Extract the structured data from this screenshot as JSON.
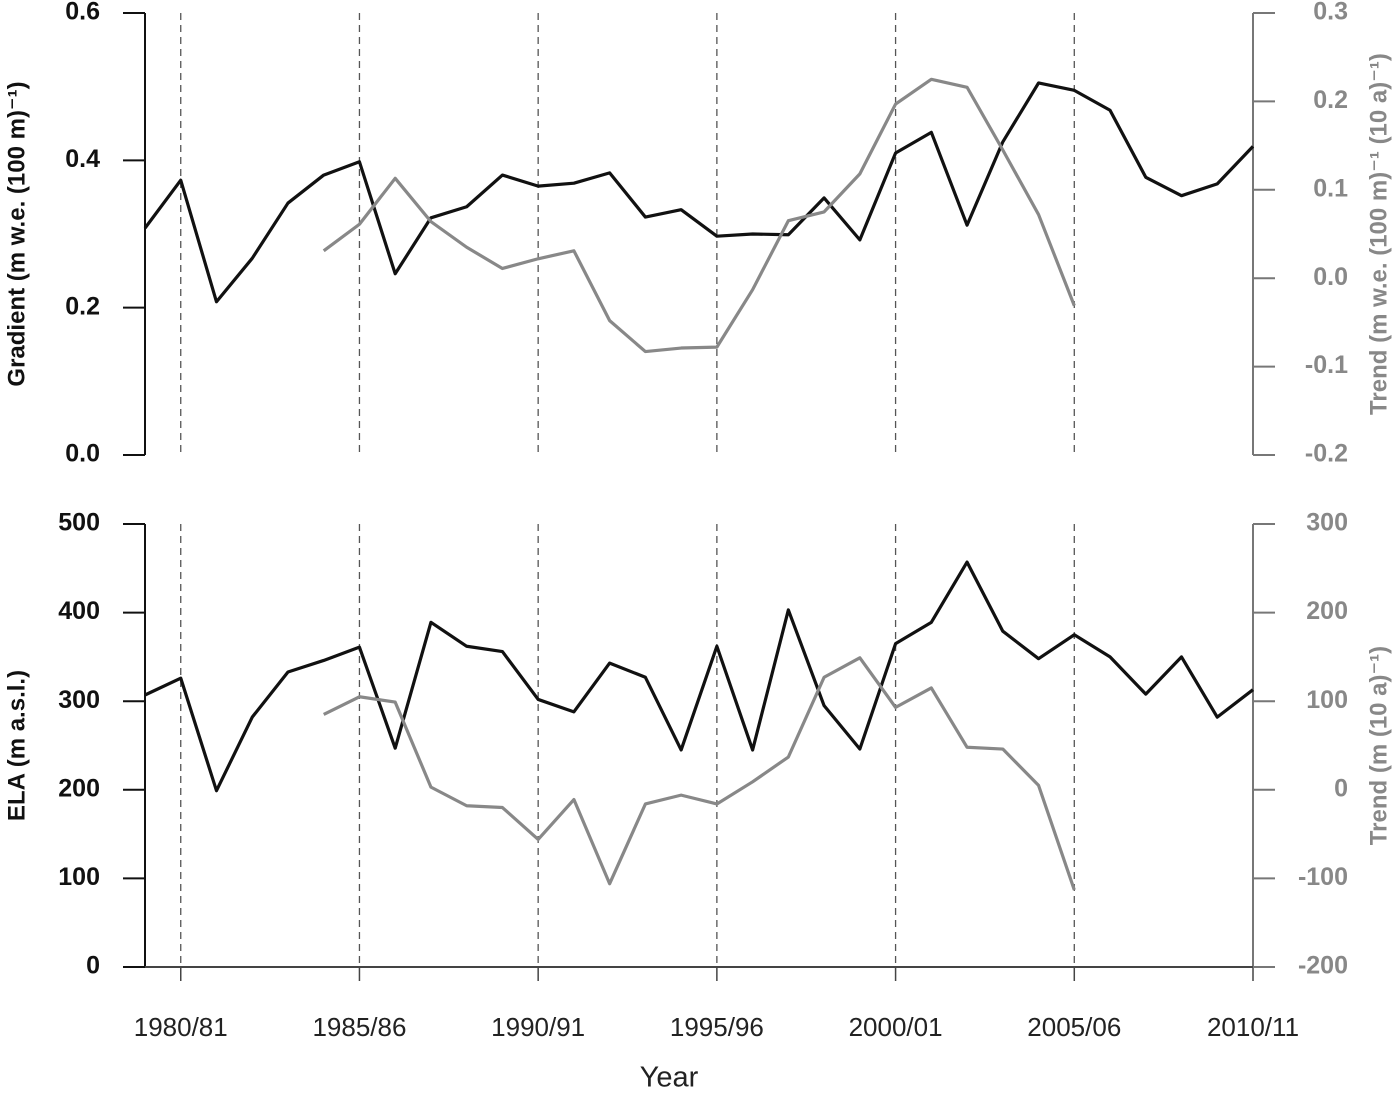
{
  "chart_data": [
    {
      "type": "line",
      "ylabel": "Gradient (m w.e. (100 m)⁻¹)",
      "y2label": "Trend (m w.e. (100 m)⁻¹ (10 a)⁻¹)",
      "x": [
        1979,
        1980,
        1981,
        1982,
        1983,
        1984,
        1985,
        1986,
        1987,
        1988,
        1989,
        1990,
        1991,
        1992,
        1993,
        1994,
        1995,
        1996,
        1997,
        1998,
        1999,
        2000,
        2001,
        2002,
        2003,
        2004,
        2005,
        2006,
        2007,
        2008,
        2009,
        2010
      ],
      "xlim": [
        1979,
        2010
      ],
      "xticks": [
        1980,
        1985,
        1990,
        1995,
        2000,
        2005,
        2010
      ],
      "ylim": [
        0,
        0.6
      ],
      "yticks": [
        {
          "value": 0,
          "label": "0.0"
        },
        0.2,
        0.4,
        0.6
      ],
      "y2lim": [
        -0.2,
        0.3
      ],
      "y2ticks": [
        -0.2,
        -0.1,
        {
          "value": 0,
          "label": "0.0"
        },
        0.1,
        0.2,
        0.3
      ],
      "grid": true,
      "series": [
        {
          "color": "#111111",
          "values": [
            0.308,
            0.373,
            0.208,
            0.267,
            0.342,
            0.38,
            0.398,
            0.246,
            0.322,
            0.337,
            0.38,
            0.365,
            0.369,
            0.383,
            0.323,
            0.333,
            0.297,
            0.3,
            0.299,
            0.349,
            0.292,
            0.41,
            0.438,
            0.312,
            0.425,
            0.505,
            0.495,
            0.468,
            0.377,
            0.352,
            0.368,
            0.419
          ]
        },
        {
          "color": "#888888",
          "axis": "y2",
          "values": [
            null,
            null,
            null,
            null,
            null,
            0.031,
            0.061,
            0.113,
            0.064,
            0.035,
            0.011,
            0.022,
            0.031,
            -0.048,
            -0.083,
            -0.079,
            -0.078,
            -0.013,
            0.065,
            0.075,
            0.118,
            0.197,
            0.225,
            0.216,
            0.145,
            0.072,
            -0.031,
            null,
            null,
            null,
            null,
            null
          ]
        }
      ]
    },
    {
      "type": "line",
      "ylabel": "ELA (m a.s.l.)",
      "y2label": "Trend (m (10 a)⁻¹)",
      "xlabel": "Year",
      "x": [
        1979,
        1980,
        1981,
        1982,
        1983,
        1984,
        1985,
        1986,
        1987,
        1988,
        1989,
        1990,
        1991,
        1992,
        1993,
        1994,
        1995,
        1996,
        1997,
        1998,
        1999,
        2000,
        2001,
        2002,
        2003,
        2004,
        2005,
        2006,
        2007,
        2008,
        2009,
        2010
      ],
      "xlim": [
        1979,
        2010
      ],
      "xticks": [
        {
          "value": 1980,
          "label": "1980/81"
        },
        {
          "value": 1985,
          "label": "1985/86"
        },
        {
          "value": 1990,
          "label": "1990/91"
        },
        {
          "value": 1995,
          "label": "1995/96"
        },
        {
          "value": 2000,
          "label": "2000/01"
        },
        {
          "value": 2005,
          "label": "2005/06"
        },
        {
          "value": 2010,
          "label": "2010/11"
        }
      ],
      "ylim": [
        0,
        500
      ],
      "yticks": [
        0,
        100,
        200,
        300,
        400,
        500
      ],
      "y2lim": [
        -200,
        300
      ],
      "y2ticks": [
        -200,
        -100,
        0,
        100,
        200,
        300
      ],
      "grid": true,
      "series": [
        {
          "color": "#111111",
          "values": [
            307,
            326,
            199,
            282,
            333,
            346,
            361,
            247,
            389,
            362,
            356,
            302,
            288,
            343,
            327,
            245,
            362,
            245,
            403,
            295,
            246,
            365,
            389,
            457,
            379,
            348,
            375,
            350,
            308,
            350,
            282,
            313
          ]
        },
        {
          "color": "#888888",
          "axis": "y2",
          "values": [
            null,
            null,
            null,
            null,
            null,
            85,
            105,
            99,
            3,
            -18,
            -20,
            -56,
            -11,
            -106,
            -16,
            -6,
            -16,
            9,
            37,
            127,
            149,
            93,
            115,
            48,
            46,
            5,
            -113,
            null,
            null,
            null,
            null,
            null
          ]
        }
      ]
    }
  ]
}
